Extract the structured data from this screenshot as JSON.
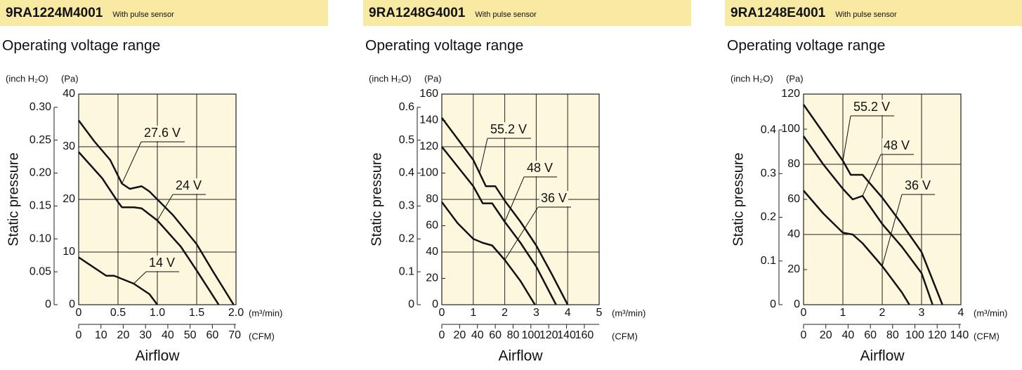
{
  "chart_data": [
    {
      "type": "line",
      "title": "9RA1224M4001",
      "title_note": "With pulse sensor",
      "subtitle": "Operating voltage range",
      "xlabel": "Airflow",
      "ylabel": "Static pressure",
      "x_unit": "(m³/min)",
      "x2_unit": "(CFM)",
      "y_unit": "(Pa)",
      "y2_unit": "(inch H₂O)",
      "xlim": [
        0,
        2
      ],
      "xticks": [
        0,
        0.5,
        {
          "value": 1,
          "label": "1.0"
        },
        1.5,
        {
          "value": 2,
          "label": "2.0"
        }
      ],
      "x2lim": [
        0,
        70.6
      ],
      "x2ticks": [
        0,
        10,
        20,
        30,
        40,
        50,
        60,
        70
      ],
      "ylim": [
        0,
        40
      ],
      "yticks": [
        0,
        10,
        20,
        30,
        40
      ],
      "y2lim": [
        0,
        0.32
      ],
      "y2ticks": [
        0,
        0.05,
        {
          "value": 0.1,
          "label": "0.10"
        },
        0.15,
        {
          "value": 0.2,
          "label": "0.20"
        },
        0.25,
        {
          "value": 0.3,
          "label": "0.30"
        }
      ],
      "series": [
        {
          "name": "27.6 V",
          "color": "#111111",
          "x": [
            0,
            0.2,
            0.4,
            0.55,
            0.65,
            0.8,
            0.9,
            1.2,
            1.5,
            1.7,
            1.97
          ],
          "values": [
            35,
            31,
            27.5,
            23,
            22,
            22.5,
            21.5,
            17,
            11.5,
            6.5,
            0
          ]
        },
        {
          "name": "24 V",
          "color": "#111111",
          "x": [
            0,
            0.3,
            0.5,
            0.55,
            0.7,
            0.8,
            1.0,
            1.3,
            1.5,
            1.78
          ],
          "values": [
            29,
            24,
            19.5,
            18.5,
            18.5,
            18.3,
            16,
            11,
            6.5,
            0
          ]
        },
        {
          "name": "14 V",
          "color": "#111111",
          "x": [
            0,
            0.2,
            0.35,
            0.45,
            0.7,
            0.9,
            1.0
          ],
          "values": [
            9,
            7,
            5.5,
            5.5,
            4,
            2,
            0
          ]
        }
      ]
    },
    {
      "type": "line",
      "title": "9RA1248G4001",
      "title_note": "With pulse sensor",
      "subtitle": "Operating voltage range",
      "xlabel": "Airflow",
      "ylabel": "Static pressure",
      "x_unit": "(m³/min)",
      "x2_unit": "(CFM)",
      "y_unit": "(Pa)",
      "y2_unit": "(inch H₂O)",
      "xlim": [
        0,
        5
      ],
      "xticks": [
        0,
        1,
        2,
        3,
        4,
        5
      ],
      "x2lim": [
        0,
        176.6
      ],
      "x2ticks": [
        0,
        20,
        40,
        60,
        80,
        100,
        120,
        140,
        160
      ],
      "ylim": [
        0,
        160
      ],
      "yticks": [
        0,
        20,
        40,
        60,
        80,
        100,
        120,
        140,
        160
      ],
      "y2lim": [
        0,
        0.64
      ],
      "y2ticks": [
        0,
        0.1,
        0.2,
        0.3,
        0.4,
        0.5,
        0.6
      ],
      "series": [
        {
          "name": "55.2 V",
          "color": "#111111",
          "x": [
            0,
            0.5,
            1.0,
            1.2,
            1.4,
            1.7,
            2.0,
            2.5,
            3.0,
            3.5,
            4.0
          ],
          "values": [
            142,
            126,
            110,
            100,
            90,
            90,
            79,
            63,
            45,
            23,
            0
          ]
        },
        {
          "name": "48 V",
          "color": "#111111",
          "x": [
            0,
            0.5,
            1.0,
            1.3,
            1.6,
            2.0,
            2.5,
            3.0,
            3.63
          ],
          "values": [
            120,
            105,
            90,
            77,
            77,
            63,
            47,
            29,
            0
          ]
        },
        {
          "name": "36 V",
          "color": "#111111",
          "x": [
            0,
            0.5,
            1.0,
            1.3,
            1.6,
            2.0,
            2.5,
            2.96
          ],
          "values": [
            78,
            62,
            50,
            47,
            45,
            34,
            18,
            0
          ]
        }
      ]
    },
    {
      "type": "line",
      "title": "9RA1248E4001",
      "title_note": "With pulse sensor",
      "subtitle": "Operating voltage range",
      "xlabel": "Airflow",
      "ylabel": "Static pressure",
      "x_unit": "(m³/min)",
      "x2_unit": "(CFM)",
      "y_unit": "(Pa)",
      "y2_unit": "(inch H₂O)",
      "xlim": [
        0,
        4
      ],
      "xticks": [
        0,
        1,
        2,
        3,
        4
      ],
      "x2lim": [
        0,
        141.3
      ],
      "x2ticks": [
        0,
        20,
        40,
        60,
        80,
        100,
        120,
        140
      ],
      "ylim": [
        0,
        120
      ],
      "yticks": [
        0,
        20,
        40,
        60,
        80,
        100,
        120
      ],
      "y2lim": [
        0,
        0.482
      ],
      "y2ticks": [
        0,
        0.1,
        0.2,
        0.3,
        0.4
      ],
      "series": [
        {
          "name": "55.2 V",
          "color": "#111111",
          "x": [
            0,
            0.5,
            1.0,
            1.2,
            1.5,
            2.0,
            2.5,
            3.0,
            3.53
          ],
          "values": [
            114,
            98,
            82,
            74,
            74,
            61,
            46,
            30,
            0
          ]
        },
        {
          "name": "48 V",
          "color": "#111111",
          "x": [
            0,
            0.5,
            1.0,
            1.25,
            1.5,
            2.0,
            2.5,
            3.0,
            3.28
          ],
          "values": [
            96,
            80,
            66,
            60,
            62,
            46,
            33,
            18,
            0
          ]
        },
        {
          "name": "36 V",
          "color": "#111111",
          "x": [
            0,
            0.5,
            1.0,
            1.25,
            1.5,
            2.0,
            2.5,
            2.69
          ],
          "values": [
            65,
            52,
            41,
            40,
            35,
            22,
            7,
            0
          ]
        }
      ]
    }
  ]
}
